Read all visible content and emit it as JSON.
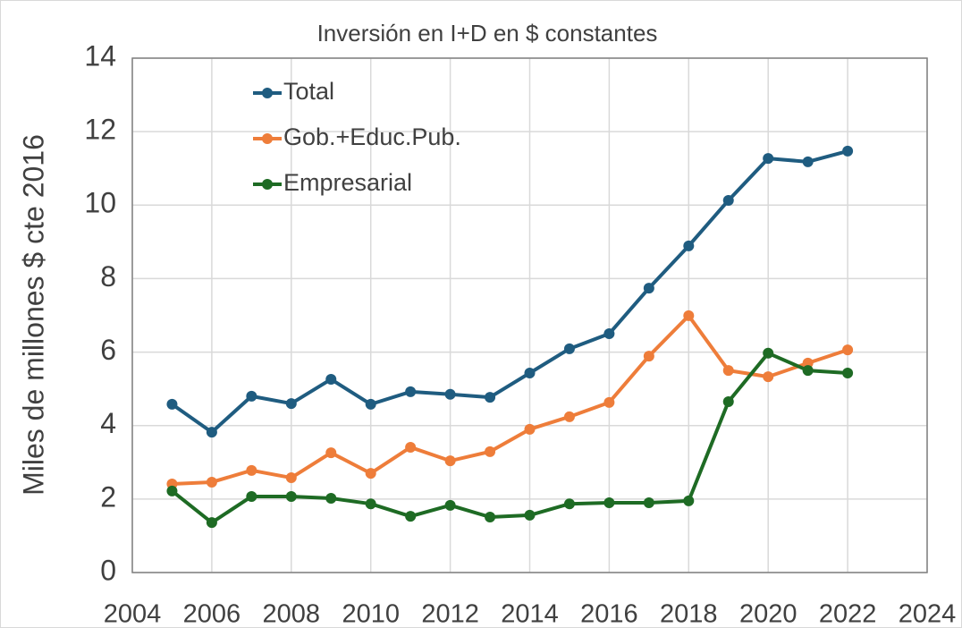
{
  "chart_data": {
    "type": "line",
    "title": "Inversión en I+D en $ constantes",
    "y_label": "Miles de millones $ cte 2016",
    "x": [
      2005,
      2006,
      2007,
      2008,
      2009,
      2010,
      2011,
      2012,
      2013,
      2014,
      2015,
      2016,
      2017,
      2018,
      2019,
      2020,
      2021,
      2022
    ],
    "series": [
      {
        "name": "Total",
        "color": "#1f5c80",
        "values": [
          4.58,
          3.82,
          4.8,
          4.6,
          5.26,
          4.58,
          4.92,
          4.85,
          4.77,
          5.43,
          6.09,
          6.5,
          7.74,
          8.89,
          10.13,
          11.27,
          11.18,
          11.47
        ]
      },
      {
        "name": "Gob.+Educ.Pub.",
        "color": "#ee7d3a",
        "values": [
          2.41,
          2.46,
          2.78,
          2.58,
          3.26,
          2.7,
          3.41,
          3.04,
          3.29,
          3.9,
          4.24,
          4.63,
          5.89,
          6.99,
          5.5,
          5.33,
          5.7,
          6.06
        ]
      },
      {
        "name": "Empresarial",
        "color": "#1e6b24",
        "values": [
          2.22,
          1.36,
          2.07,
          2.07,
          2.02,
          1.87,
          1.53,
          1.83,
          1.51,
          1.56,
          1.87,
          1.9,
          1.9,
          1.95,
          4.65,
          5.97,
          5.5,
          5.43
        ]
      }
    ],
    "xlim": [
      2004,
      2024
    ],
    "xticks": [
      2004,
      2006,
      2008,
      2010,
      2012,
      2014,
      2016,
      2018,
      2020,
      2022,
      2024
    ],
    "ylim": [
      0,
      14
    ],
    "yticks": [
      0,
      2,
      4,
      6,
      8,
      10,
      12,
      14
    ],
    "grid": true,
    "legend": "upper left"
  }
}
